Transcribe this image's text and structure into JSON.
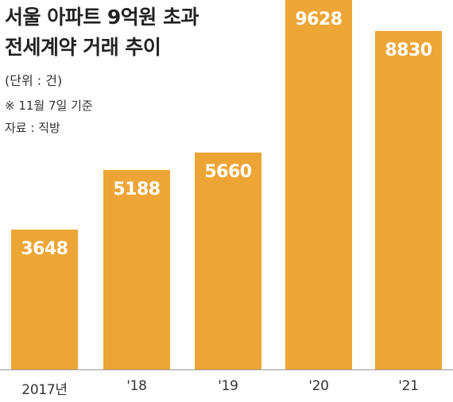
{
  "title_line1": "서울 아파트 9억원 초과",
  "title_line2": "전세계약 거래 추이",
  "unit": "(단위 : 건)",
  "note": "※ 11월 7일 기준",
  "source": "자료 : 직방",
  "colors": {
    "bar": "#EDA535",
    "value_text": "#ffffff",
    "baseline": "#999999"
  },
  "chart_data": {
    "type": "bar",
    "title": "서울 아파트 9억원 초과 전세계약 거래 추이",
    "categories": [
      "2017년",
      "'18",
      "'19",
      "'20",
      "'21"
    ],
    "values": [
      3648,
      5188,
      5660,
      9628,
      8830
    ],
    "ylabel": "",
    "xlabel": "",
    "unit": "건",
    "grid": false,
    "legend": "none"
  }
}
